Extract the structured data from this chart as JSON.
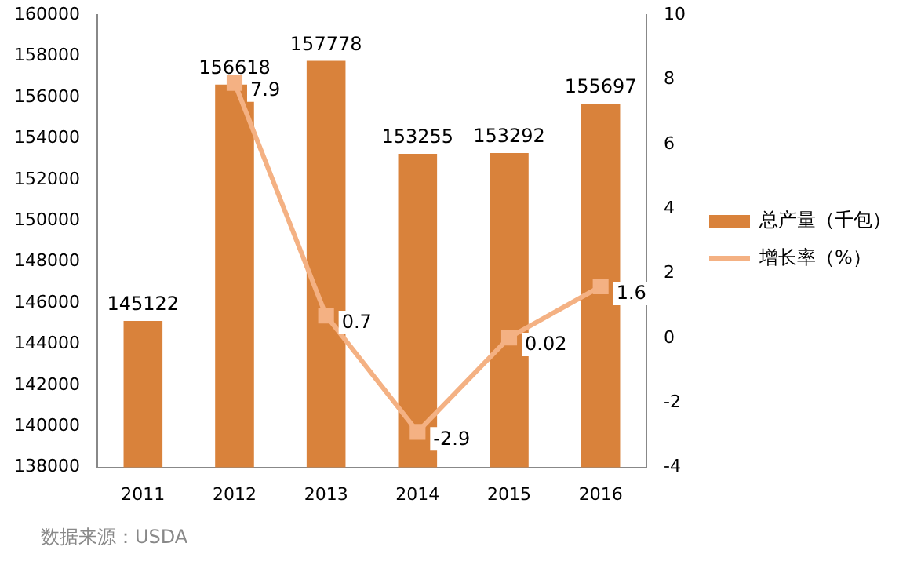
{
  "chart_data": {
    "type": "bar",
    "categories": [
      "2011",
      "2012",
      "2013",
      "2014",
      "2015",
      "2016"
    ],
    "series": [
      {
        "name": "总产量（千包）",
        "color": "#d9823b",
        "values": [
          145122,
          156618,
          157778,
          153255,
          153292,
          155697
        ]
      },
      {
        "name": "增长率（%）",
        "type": "line",
        "axis": "y2",
        "color": "#f4b183",
        "values": [
          null,
          7.9,
          0.7,
          -2.9,
          0.02,
          1.6
        ]
      }
    ],
    "ylim": [
      138000,
      160000
    ],
    "yticks": [
      138000,
      140000,
      142000,
      144000,
      146000,
      148000,
      150000,
      152000,
      154000,
      156000,
      158000,
      160000
    ],
    "y2lim": [
      -4,
      10
    ],
    "y2ticks": [
      -4,
      -2,
      0,
      2,
      4,
      6,
      8,
      10
    ],
    "data_labels": true,
    "legend": "right",
    "marker": "square",
    "grid": false,
    "annotations": [
      "数据来源：USDA"
    ]
  }
}
